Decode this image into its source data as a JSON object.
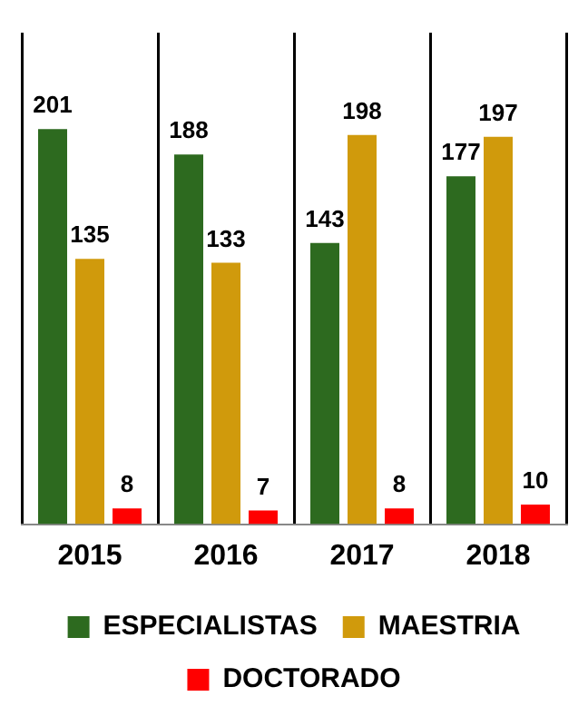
{
  "chart_data": {
    "type": "bar",
    "categories": [
      "2015",
      "2016",
      "2017",
      "2018"
    ],
    "series": [
      {
        "name": "ESPECIALISTAS",
        "color": "#2d6a1f",
        "values": [
          201,
          188,
          143,
          177
        ]
      },
      {
        "name": "MAESTRIA",
        "color": "#d09a0c",
        "values": [
          135,
          133,
          198,
          197
        ]
      },
      {
        "name": "DOCTORADO",
        "color": "#ff0000",
        "values": [
          8,
          7,
          8,
          10
        ]
      }
    ],
    "data_labels": true,
    "grid": "x",
    "legend": "bottom"
  }
}
